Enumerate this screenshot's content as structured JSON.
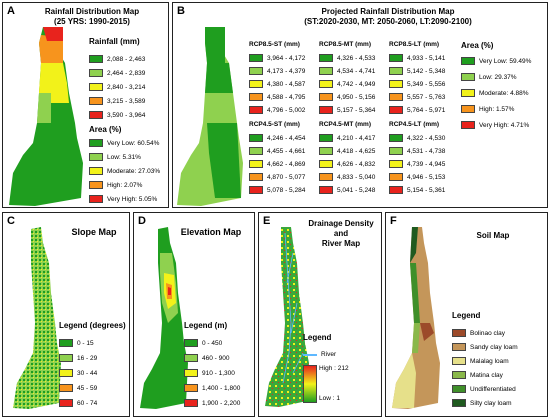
{
  "panelA": {
    "label": "A",
    "title": "Rainfall Distribution Map",
    "subtitle": "(25 YRS: 1990-2015)",
    "rain_title": "Rainfall (mm)",
    "rain_items": [
      {
        "label": "2,088 - 2,463",
        "color": "#1f9e1f"
      },
      {
        "label": "2,464 - 2,839",
        "color": "#8fd14f"
      },
      {
        "label": "2,840 - 3,214",
        "color": "#f2f21a"
      },
      {
        "label": "3,215 - 3,589",
        "color": "#f7941d"
      },
      {
        "label": "3,590 - 3,964",
        "color": "#e8231d"
      }
    ],
    "area_title": "Area (%)",
    "area_items": [
      {
        "label": "Very Low: 60.54%",
        "color": "#1f9e1f"
      },
      {
        "label": "Low: 5.31%",
        "color": "#8fd14f"
      },
      {
        "label": "Moderate: 27.03%",
        "color": "#f2f21a"
      },
      {
        "label": "High: 2.07%",
        "color": "#f7941d"
      },
      {
        "label": "Very High: 5.05%",
        "color": "#e8231d"
      }
    ]
  },
  "panelB": {
    "label": "B",
    "title": "Projected Rainfall Distribution Map",
    "subtitle": "(ST:2020-2030, MT: 2050-2060, LT:2090-2100)",
    "colors": [
      "#1f9e1f",
      "#8fd14f",
      "#f2f21a",
      "#f7941d",
      "#e8231d"
    ],
    "groups": [
      {
        "title": "RCP8.5-ST (mm)",
        "items": [
          "3,964 - 4,172",
          "4,173 - 4,379",
          "4,380 - 4,587",
          "4,588 - 4,795",
          "4,796 - 5,002"
        ]
      },
      {
        "title": "RCP8.5-MT (mm)",
        "items": [
          "4,326 - 4,533",
          "4,534 - 4,741",
          "4,742 - 4,949",
          "4,950 - 5,156",
          "5,157 - 5,364"
        ]
      },
      {
        "title": "RCP8.5-LT (mm)",
        "items": [
          "4,933 - 5,141",
          "5,142 - 5,348",
          "5,349 - 5,556",
          "5,557 - 5,763",
          "5,764 - 5,971"
        ]
      },
      {
        "title": "RCP4.5-ST (mm)",
        "items": [
          "4,246 - 4,454",
          "4,455 - 4,661",
          "4,662 - 4,869",
          "4,870 - 5,077",
          "5,078 - 5,284"
        ]
      },
      {
        "title": "RCP4.5-MT (mm)",
        "items": [
          "4,210 - 4,417",
          "4,418 - 4,625",
          "4,626 - 4,832",
          "4,833 - 5,040",
          "5,041 - 5,248"
        ]
      },
      {
        "title": "RCP4.5-LT (mm)",
        "items": [
          "4,322 - 4,530",
          "4,531 - 4,738",
          "4,739 - 4,945",
          "4,946 - 5,153",
          "5,154 - 5,361"
        ]
      }
    ],
    "area_title": "Area (%)",
    "area_items": [
      {
        "label": "Very Low: 59.49%",
        "color": "#1f9e1f"
      },
      {
        "label": "Low: 29.37%",
        "color": "#8fd14f"
      },
      {
        "label": "Moderate: 4.88%",
        "color": "#f2f21a"
      },
      {
        "label": "High: 1.57%",
        "color": "#f7941d"
      },
      {
        "label": "Very High: 4.71%",
        "color": "#e8231d"
      }
    ]
  },
  "panelC": {
    "label": "C",
    "title": "Slope Map",
    "legend_title": "Legend (degrees)",
    "items": [
      {
        "label": "0 - 15",
        "color": "#1f9e1f"
      },
      {
        "label": "16 - 29",
        "color": "#8fd14f"
      },
      {
        "label": "30 - 44",
        "color": "#f2f21a"
      },
      {
        "label": "45 - 59",
        "color": "#f7941d"
      },
      {
        "label": "60 - 74",
        "color": "#e8231d"
      }
    ]
  },
  "panelD": {
    "label": "D",
    "title": "Elevation Map",
    "legend_title": "Legend (m)",
    "items": [
      {
        "label": "0 - 450",
        "color": "#1f9e1f"
      },
      {
        "label": "460 - 900",
        "color": "#8fd14f"
      },
      {
        "label": "910 - 1,300",
        "color": "#f2f21a"
      },
      {
        "label": "1,400 - 1,800",
        "color": "#f7941d"
      },
      {
        "label": "1,900 - 2,200",
        "color": "#e8231d"
      }
    ]
  },
  "panelE": {
    "label": "E",
    "title_line1": "Drainage Density",
    "title_line2": "and",
    "title_line3": "River Map",
    "legend_title": "Legend",
    "river_label": "River",
    "high_label": "High : 212",
    "low_label": "Low : 1",
    "river_color": "#5fb8ff"
  },
  "panelF": {
    "label": "F",
    "title": "Soil Map",
    "legend_title": "Legend",
    "items": [
      {
        "label": "Bolinao clay",
        "color": "#9c4a2a"
      },
      {
        "label": "Sandy clay loam",
        "color": "#c4965a"
      },
      {
        "label": "Malalag loam",
        "color": "#e6e08a"
      },
      {
        "label": "Matina clay",
        "color": "#8ab84a"
      },
      {
        "label": "Undifferentiated",
        "color": "#3f8f2a"
      },
      {
        "label": "Silty clay loam",
        "color": "#1f5a1f"
      }
    ]
  }
}
